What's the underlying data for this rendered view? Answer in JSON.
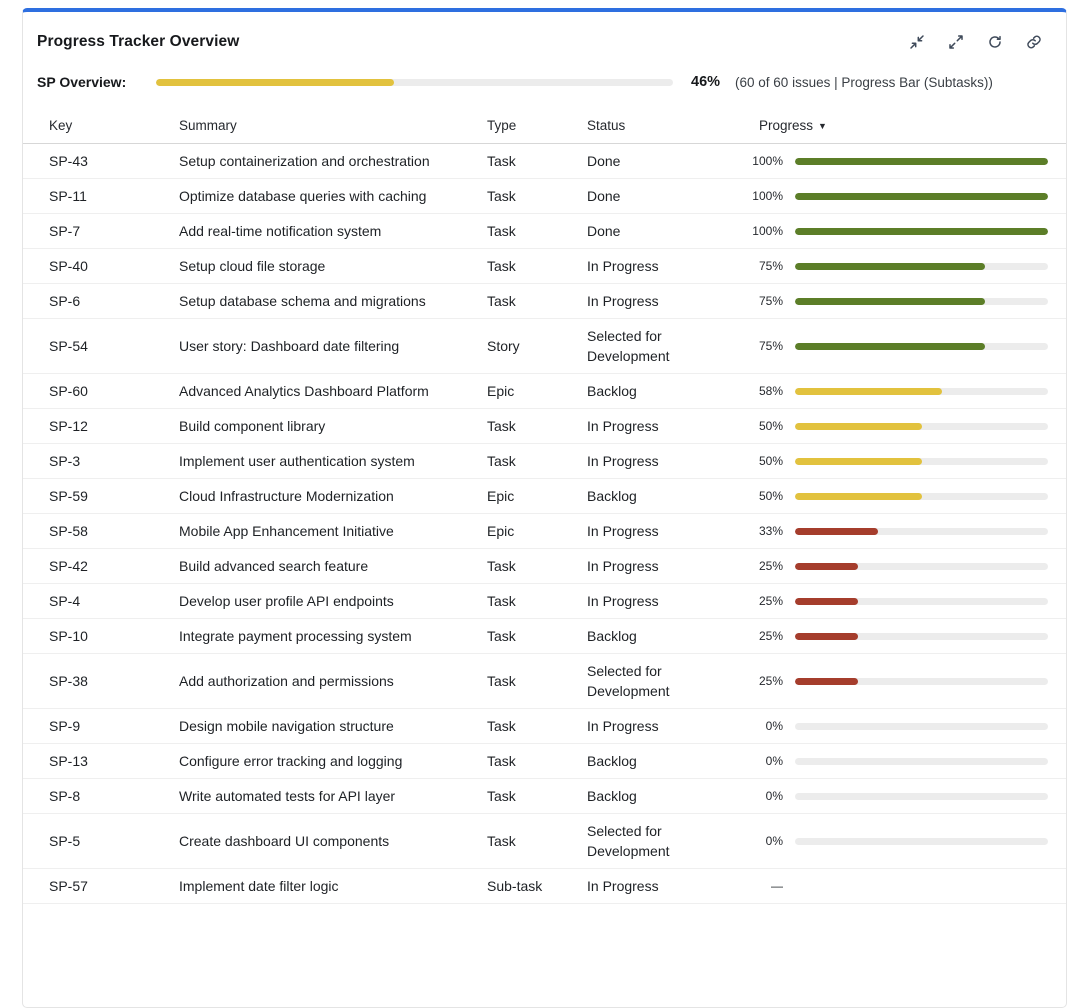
{
  "panel": {
    "title": "Progress Tracker Overview",
    "accent_color": "#2e6fe0",
    "toolbar": {
      "icons": [
        "minimize-icon",
        "expand-icon",
        "refresh-icon",
        "link-icon"
      ]
    }
  },
  "overview": {
    "label": "SP Overview:",
    "percent": 46,
    "percent_label": "46%",
    "detail": "(60 of 60 issues | Progress Bar (Subtasks))",
    "bar_color": "#e2c23e"
  },
  "colors": {
    "green": "#5c7e28",
    "yellow": "#e2c23e",
    "red": "#a53d2c",
    "track": "#ececec"
  },
  "table": {
    "columns": [
      "Key",
      "Summary",
      "Type",
      "Status",
      "Progress"
    ],
    "sort_indicator": "▼",
    "no_progress_label": "—",
    "rows": [
      {
        "key": "SP-43",
        "summary": "Setup containerization and orchestration",
        "type": "Task",
        "status": "Done",
        "percent": 100,
        "percent_label": "100%",
        "color": "green"
      },
      {
        "key": "SP-11",
        "summary": "Optimize database queries with caching",
        "type": "Task",
        "status": "Done",
        "percent": 100,
        "percent_label": "100%",
        "color": "green"
      },
      {
        "key": "SP-7",
        "summary": "Add real-time notification system",
        "type": "Task",
        "status": "Done",
        "percent": 100,
        "percent_label": "100%",
        "color": "green"
      },
      {
        "key": "SP-40",
        "summary": "Setup cloud file storage",
        "type": "Task",
        "status": "In Progress",
        "percent": 75,
        "percent_label": "75%",
        "color": "green"
      },
      {
        "key": "SP-6",
        "summary": "Setup database schema and migrations",
        "type": "Task",
        "status": "In Progress",
        "percent": 75,
        "percent_label": "75%",
        "color": "green"
      },
      {
        "key": "SP-54",
        "summary": "User story: Dashboard date filtering",
        "type": "Story",
        "status": "Selected for Development",
        "percent": 75,
        "percent_label": "75%",
        "color": "green"
      },
      {
        "key": "SP-60",
        "summary": "Advanced Analytics Dashboard Platform",
        "type": "Epic",
        "status": "Backlog",
        "percent": 58,
        "percent_label": "58%",
        "color": "yellow"
      },
      {
        "key": "SP-12",
        "summary": "Build component library",
        "type": "Task",
        "status": "In Progress",
        "percent": 50,
        "percent_label": "50%",
        "color": "yellow"
      },
      {
        "key": "SP-3",
        "summary": "Implement user authentication system",
        "type": "Task",
        "status": "In Progress",
        "percent": 50,
        "percent_label": "50%",
        "color": "yellow"
      },
      {
        "key": "SP-59",
        "summary": "Cloud Infrastructure Modernization",
        "type": "Epic",
        "status": "Backlog",
        "percent": 50,
        "percent_label": "50%",
        "color": "yellow"
      },
      {
        "key": "SP-58",
        "summary": "Mobile App Enhancement Initiative",
        "type": "Epic",
        "status": "In Progress",
        "percent": 33,
        "percent_label": "33%",
        "color": "red"
      },
      {
        "key": "SP-42",
        "summary": "Build advanced search feature",
        "type": "Task",
        "status": "In Progress",
        "percent": 25,
        "percent_label": "25%",
        "color": "red"
      },
      {
        "key": "SP-4",
        "summary": "Develop user profile API endpoints",
        "type": "Task",
        "status": "In Progress",
        "percent": 25,
        "percent_label": "25%",
        "color": "red"
      },
      {
        "key": "SP-10",
        "summary": "Integrate payment processing system",
        "type": "Task",
        "status": "Backlog",
        "percent": 25,
        "percent_label": "25%",
        "color": "red"
      },
      {
        "key": "SP-38",
        "summary": "Add authorization and permissions",
        "type": "Task",
        "status": "Selected for Development",
        "percent": 25,
        "percent_label": "25%",
        "color": "red"
      },
      {
        "key": "SP-9",
        "summary": "Design mobile navigation structure",
        "type": "Task",
        "status": "In Progress",
        "percent": 0,
        "percent_label": "0%",
        "color": null
      },
      {
        "key": "SP-13",
        "summary": "Configure error tracking and logging",
        "type": "Task",
        "status": "Backlog",
        "percent": 0,
        "percent_label": "0%",
        "color": null
      },
      {
        "key": "SP-8",
        "summary": "Write automated tests for API layer",
        "type": "Task",
        "status": "Backlog",
        "percent": 0,
        "percent_label": "0%",
        "color": null
      },
      {
        "key": "SP-5",
        "summary": "Create dashboard UI components",
        "type": "Task",
        "status": "Selected for Development",
        "percent": 0,
        "percent_label": "0%",
        "color": null
      },
      {
        "key": "SP-57",
        "summary": "Implement date filter logic",
        "type": "Sub-task",
        "status": "In Progress",
        "percent": null,
        "percent_label": null,
        "color": null
      }
    ]
  }
}
